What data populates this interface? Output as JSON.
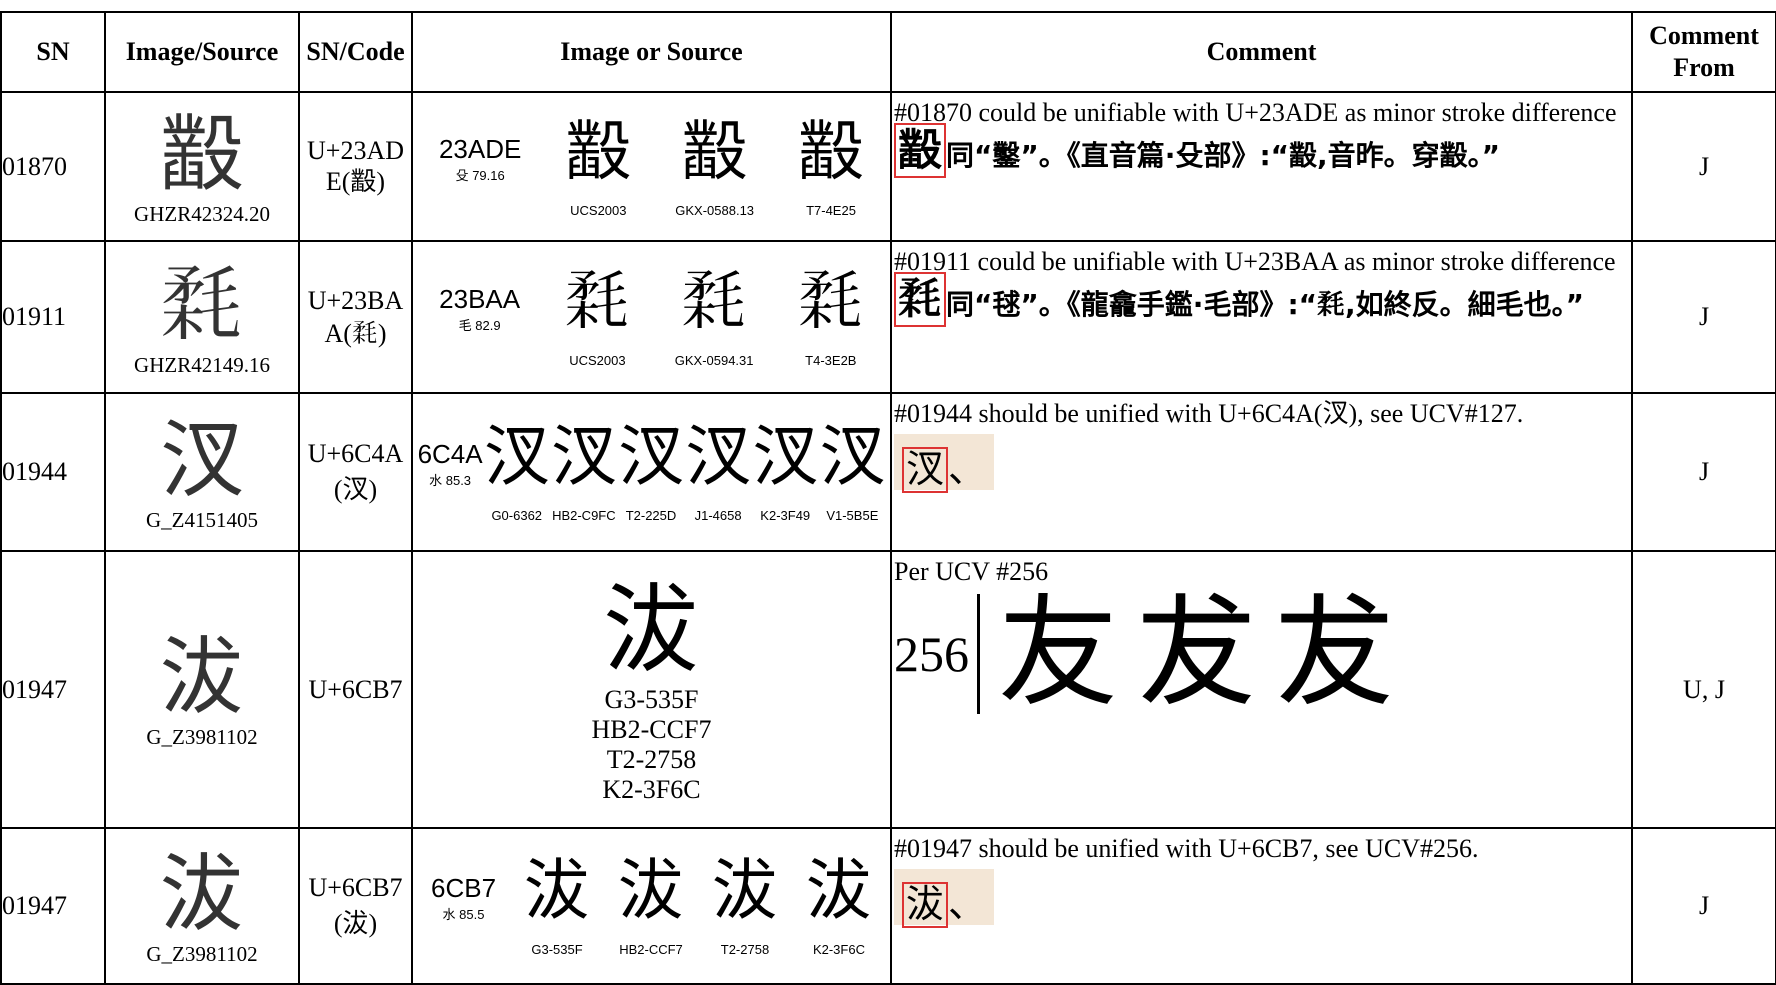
{
  "table": {
    "headers": [
      "SN",
      "Image/Source",
      "SN/Code",
      "Image or Source",
      "Comment",
      "Comment From"
    ],
    "rows": [
      {
        "sn": "01870",
        "glyph": "𣫞",
        "source": "GHZR42324.20",
        "code": "U+23ADE(𣫞)",
        "panel": {
          "code": "23ADE",
          "radical": "殳 79.16",
          "glyphs": [
            {
              "char": "𣫞",
              "label": "UCS2003"
            },
            {
              "char": "𣫞",
              "label": "GKX-0588.13"
            },
            {
              "char": "𣫞",
              "label": "T7-4E25"
            }
          ]
        },
        "comment": "#01870 could be unifiable with U+23ADE as minor stroke difference",
        "evidence": {
          "boxed": "𣫞",
          "text": "同“鑿”。《直音篇·殳部》:“𣫞,音昨。穿𣫞。”"
        },
        "from": "J"
      },
      {
        "sn": "01911",
        "glyph": "𣮪",
        "source": "GHZR42149.16",
        "code": "U+23BAA(𣮪)",
        "panel": {
          "code": "23BAA",
          "radical": "毛 82.9",
          "glyphs": [
            {
              "char": "𣮪",
              "label": "UCS2003"
            },
            {
              "char": "𣮪",
              "label": "GKX-0594.31"
            },
            {
              "char": "𣮪",
              "label": "T4-3E2B"
            }
          ]
        },
        "comment": "#01911 could be unifiable with U+23BAA as minor stroke difference",
        "evidence": {
          "boxed": "𣮪",
          "text": "同“毬”。《龍龕手鑑·毛部》:“𣮪,如終反。細毛也。”"
        },
        "from": "J"
      },
      {
        "sn": "01944",
        "glyph": "汊",
        "source": "G_Z4151405",
        "code": "U+6C4A(汊)",
        "panel": {
          "code": "6C4A",
          "radical": "水 85.3",
          "glyphs": [
            {
              "char": "汊",
              "label": "G0-6362"
            },
            {
              "char": "汊",
              "label": "HB2-C9FC"
            },
            {
              "char": "汊",
              "label": "T2-225D"
            },
            {
              "char": "汊",
              "label": "J1-4658"
            },
            {
              "char": "汊",
              "label": "K2-3F49"
            },
            {
              "char": "汊",
              "label": "V1-5B5E"
            }
          ]
        },
        "comment": "#01944 should be unified with U+6C4A(汊), see UCV#127.",
        "evidence": {
          "boxed": "汊",
          "text": "、"
        },
        "from": "J"
      },
      {
        "sn": "01947",
        "glyph": "沷",
        "source": "G_Z3981102",
        "code": "U+6CB7",
        "big": {
          "char": "沷",
          "sources": [
            "G3-535F",
            "HB2-CCF7",
            "T2-2758",
            "K2-3F6C"
          ]
        },
        "comment": "Per UCV #256",
        "ucv": {
          "number": "256",
          "chars": [
            "友",
            "犮",
            "犮"
          ]
        },
        "from": "U, J"
      },
      {
        "sn": "01947",
        "glyph": "沷",
        "source": "G_Z3981102",
        "code": "U+6CB7(沷)",
        "panel": {
          "code": "6CB7",
          "radical": "水 85.5",
          "glyphs": [
            {
              "char": "沷",
              "label": "G3-535F"
            },
            {
              "char": "沷",
              "label": "HB2-CCF7"
            },
            {
              "char": "沷",
              "label": "T2-2758"
            },
            {
              "char": "沷",
              "label": "K2-3F6C"
            }
          ]
        },
        "comment": "#01947 should be unified with U+6CB7, see UCV#256.",
        "evidence": {
          "boxed": "沷",
          "text": "、"
        },
        "from": "J"
      }
    ]
  }
}
